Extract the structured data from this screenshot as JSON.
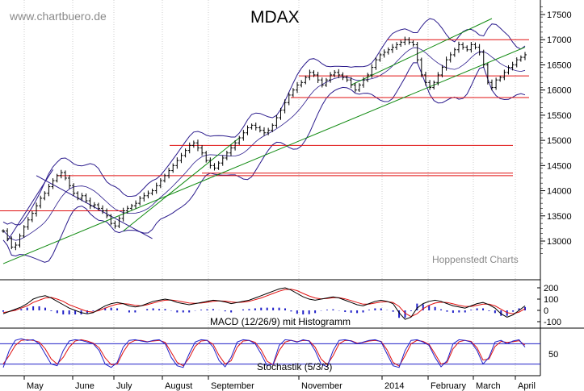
{
  "watermark": "www.chartbuero.de",
  "credit": "Hoppenstedt Charts",
  "colors": {
    "background": "#ffffff",
    "price_bars": "#000000",
    "bollinger": "#2a1a8c",
    "trendline": "#108a10",
    "support_resistance": "#e01010",
    "macd_line": "#000000",
    "signal_line": "#e01010",
    "histogram": "#2020c8",
    "stoch_k": "#2020c8",
    "stoch_d": "#e01010",
    "grid": "#b8b8b8"
  },
  "chart_data": [
    {
      "type": "ohlc",
      "title": "MDAX",
      "x": [
        "May",
        "June",
        "July",
        "August",
        "September",
        "November",
        "2014",
        "February",
        "March",
        "April"
      ],
      "ylim": [
        12700,
        17700
      ],
      "y_ticks": [
        13000,
        13500,
        14000,
        14500,
        15000,
        15500,
        16000,
        16500,
        17000,
        17500
      ],
      "grid": "vertical dotted at month starts",
      "closes": [
        13200,
        13050,
        12880,
        12920,
        13100,
        13280,
        13420,
        13550,
        13700,
        13850,
        13950,
        14080,
        14200,
        14300,
        14360,
        14250,
        14100,
        13950,
        13850,
        13900,
        13800,
        13700,
        13720,
        13650,
        13600,
        13500,
        13350,
        13300,
        13450,
        13600,
        13650,
        13700,
        13750,
        13850,
        13900,
        13950,
        14000,
        14100,
        14200,
        14300,
        14400,
        14500,
        14600,
        14700,
        14800,
        14900,
        14950,
        14850,
        14750,
        14600,
        14500,
        14450,
        14550,
        14650,
        14750,
        14850,
        14950,
        15050,
        15150,
        15250,
        15300,
        15250,
        15200,
        15150,
        15200,
        15300,
        15450,
        15600,
        15750,
        15900,
        16000,
        16100,
        16150,
        16250,
        16350,
        16300,
        16200,
        16100,
        16200,
        16300,
        16350,
        16300,
        16250,
        16200,
        16100,
        16000,
        16100,
        16200,
        16300,
        16450,
        16600,
        16700,
        16750,
        16800,
        16850,
        16900,
        16950,
        17000,
        16950,
        16900,
        16600,
        16300,
        16150,
        16050,
        16150,
        16300,
        16450,
        16600,
        16700,
        16800,
        16900,
        16850,
        16800,
        16900,
        16850,
        16750,
        16500,
        16150,
        16050,
        16200,
        16250,
        16350,
        16450,
        16500,
        16600,
        16650,
        16700
      ],
      "horizontal_lines": [
        13600,
        14300,
        14900,
        14350,
        16280,
        15850,
        17000
      ],
      "trendlines": [
        {
          "name": "long-term-support",
          "from": {
            "bar": 0,
            "value": 12550
          },
          "to": {
            "bar": 126,
            "value": 16850
          }
        },
        {
          "name": "upper-channel",
          "from": {
            "bar": 1,
            "value": 13000
          },
          "to": {
            "bar": 12,
            "value": 14420
          }
        },
        {
          "name": "short-term-support",
          "from": {
            "bar": 29,
            "value": 13200
          },
          "to": {
            "bar": 57,
            "value": 15050
          }
        },
        {
          "name": "upper-upper",
          "from": {
            "bar": 84,
            "value": 16100
          },
          "to": {
            "bar": 118,
            "value": 17420
          }
        },
        {
          "name": "down-arrow-line",
          "from": {
            "bar": 8,
            "value": 14300
          },
          "to": {
            "bar": 36,
            "value": 13050
          }
        }
      ],
      "annotations": [
        "Hoppenstedt Charts"
      ]
    },
    {
      "type": "line+bar",
      "title": "MACD (12/26/9) mit Histogramm",
      "ylim": [
        -150,
        250
      ],
      "y_ticks": [
        200,
        100,
        0,
        -100
      ],
      "macd": [
        -30,
        -10,
        10,
        30,
        60,
        100,
        120,
        130,
        110,
        80,
        50,
        20,
        0,
        -20,
        -30,
        -20,
        10,
        40,
        60,
        70,
        60,
        40,
        30,
        40,
        60,
        80,
        90,
        100,
        90,
        70,
        60,
        50,
        60,
        70,
        80,
        90,
        85,
        75,
        60,
        70,
        80,
        90,
        110,
        130,
        150,
        170,
        190,
        200,
        180,
        150,
        120,
        100,
        90,
        100,
        110,
        120,
        110,
        90,
        70,
        50,
        40,
        60,
        80,
        90,
        80,
        60,
        -20,
        -80,
        -60,
        20,
        60,
        80,
        90,
        80,
        60,
        40,
        30,
        20,
        40,
        60,
        70,
        50,
        20,
        -30,
        -60,
        -40,
        0,
        40
      ],
      "signal": [
        -20,
        -10,
        0,
        20,
        40,
        70,
        90,
        110,
        115,
        100,
        80,
        50,
        30,
        10,
        -10,
        -15,
        0,
        20,
        40,
        55,
        60,
        55,
        45,
        40,
        50,
        65,
        80,
        90,
        92,
        85,
        75,
        65,
        62,
        65,
        72,
        80,
        84,
        82,
        75,
        70,
        73,
        80,
        95,
        110,
        130,
        150,
        170,
        185,
        188,
        175,
        150,
        128,
        110,
        102,
        105,
        112,
        112,
        102,
        87,
        70,
        55,
        55,
        65,
        75,
        78,
        70,
        35,
        -25,
        -55,
        -30,
        15,
        45,
        65,
        72,
        70,
        58,
        45,
        35,
        35,
        45,
        55,
        55,
        40,
        10,
        -20,
        -30,
        -15,
        15
      ]
    },
    {
      "type": "line",
      "title": "Stochastik (5/3/3)",
      "ylim": [
        0,
        100
      ],
      "y_ticks": [
        50
      ],
      "reference_levels": [
        80,
        20
      ],
      "k": [
        10,
        60,
        90,
        95,
        90,
        92,
        80,
        50,
        20,
        15,
        60,
        88,
        92,
        90,
        85,
        80,
        60,
        20,
        10,
        25,
        70,
        90,
        92,
        88,
        85,
        90,
        92,
        80,
        40,
        15,
        10,
        50,
        85,
        92,
        90,
        70,
        30,
        12,
        40,
        85,
        92,
        90,
        80,
        50,
        15,
        20,
        75,
        92,
        90,
        85,
        92,
        88,
        60,
        20,
        12,
        60,
        90,
        92,
        88,
        80,
        85,
        90,
        92,
        86,
        50,
        15,
        10,
        60,
        90,
        92,
        85,
        75,
        40,
        12,
        30,
        80,
        92,
        90,
        85,
        60,
        20,
        40,
        85,
        90,
        80,
        88,
        92,
        70
      ],
      "d": [
        20,
        45,
        75,
        90,
        92,
        90,
        85,
        65,
        35,
        20,
        40,
        70,
        88,
        92,
        88,
        82,
        68,
        38,
        18,
        20,
        55,
        82,
        90,
        90,
        86,
        88,
        90,
        84,
        55,
        25,
        15,
        38,
        72,
        88,
        90,
        78,
        45,
        20,
        30,
        70,
        88,
        90,
        84,
        62,
        28,
        18,
        60,
        85,
        90,
        86,
        90,
        89,
        70,
        35,
        18,
        45,
        80,
        90,
        89,
        82,
        84,
        88,
        90,
        87,
        62,
        25,
        14,
        45,
        80,
        90,
        87,
        78,
        50,
        20,
        25,
        65,
        86,
        90,
        87,
        68,
        32,
        35,
        72,
        87,
        84,
        86,
        89,
        76
      ]
    }
  ]
}
